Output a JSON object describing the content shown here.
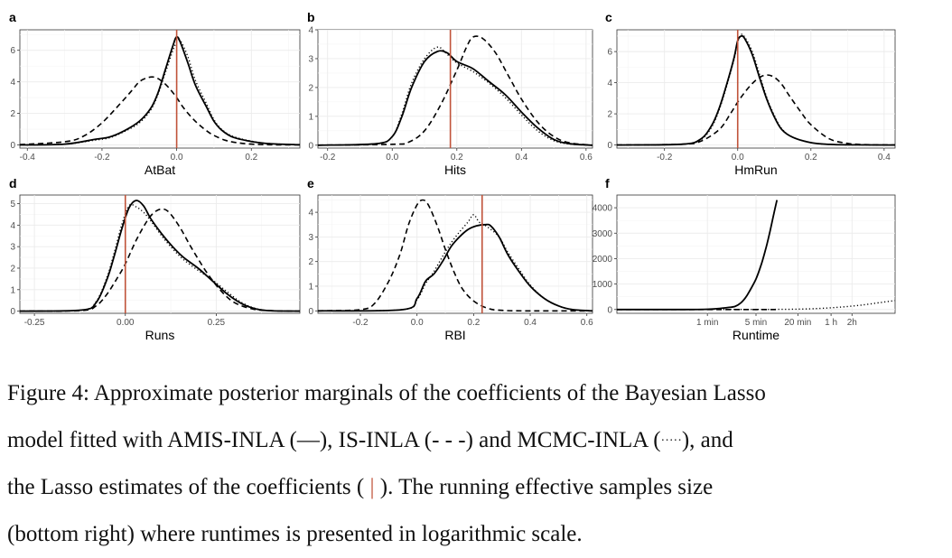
{
  "figure": {
    "caption": {
      "label": "Figure 4:",
      "line1_rest": "Approximate posterior marginals of the coefficients of the Bayesian Lasso",
      "line2_a": "model fitted with AMIS-INLA (",
      "amis_glyph": "—",
      "line2_b": "), IS-INLA (",
      "is_glyph": "- - -",
      "line2_c": ") and MCMC-INLA (",
      "mcmc_glyph": "·····",
      "line2_d": "), and",
      "line3_a": "the Lasso estimates of the coefficients (",
      "lasso_glyph": "|",
      "line3_b": ").  The running effective samples size",
      "line4": "(bottom right) where runtimes is presented in logarithmic scale."
    }
  },
  "chart_data": [
    {
      "panel": "a",
      "type": "line",
      "xlabel": "AtBat",
      "xlim": [
        -0.42,
        0.33
      ],
      "ylim": [
        -0.2,
        7.3
      ],
      "xticks": [
        -0.4,
        -0.2,
        0.0,
        0.2
      ],
      "xtick_labels": [
        "-0.4",
        "-0.2",
        "0.0",
        "0.2"
      ],
      "yticks": [
        0,
        2,
        4,
        6
      ],
      "ytick_labels": [
        "0",
        "2",
        "4",
        "6"
      ],
      "lasso_estimate": 0.0,
      "series": [
        {
          "style": "solid",
          "x": [
            -0.42,
            -0.3,
            -0.22,
            -0.18,
            -0.14,
            -0.1,
            -0.07,
            -0.05,
            -0.03,
            -0.01,
            0.0,
            0.01,
            0.03,
            0.05,
            0.08,
            0.1,
            0.12,
            0.15,
            0.2,
            0.25,
            0.33
          ],
          "y": [
            0,
            0.05,
            0.35,
            0.5,
            0.9,
            1.5,
            2.3,
            3.3,
            4.8,
            6.3,
            6.85,
            6.5,
            5.2,
            3.8,
            2.4,
            1.5,
            0.95,
            0.5,
            0.22,
            0.08,
            0.01
          ]
        },
        {
          "style": "dashed",
          "x": [
            -0.42,
            -0.3,
            -0.25,
            -0.2,
            -0.15,
            -0.12,
            -0.1,
            -0.08,
            -0.06,
            -0.04,
            -0.02,
            0.0,
            0.02,
            0.05,
            0.08,
            0.1,
            0.13,
            0.16,
            0.2,
            0.25,
            0.33
          ],
          "y": [
            0.02,
            0.2,
            0.55,
            1.4,
            2.65,
            3.45,
            4.0,
            4.25,
            4.3,
            4.05,
            3.6,
            3.0,
            2.3,
            1.5,
            0.9,
            0.6,
            0.3,
            0.15,
            0.05,
            0.01,
            0
          ]
        },
        {
          "style": "dotted",
          "x": [
            -0.42,
            -0.3,
            -0.22,
            -0.18,
            -0.14,
            -0.1,
            -0.07,
            -0.05,
            -0.03,
            -0.01,
            0.0,
            0.01,
            0.03,
            0.05,
            0.08,
            0.1,
            0.12,
            0.15,
            0.2,
            0.25,
            0.33
          ],
          "y": [
            0,
            0.05,
            0.3,
            0.45,
            0.85,
            1.4,
            2.2,
            3.2,
            4.6,
            6.0,
            6.5,
            6.6,
            5.6,
            4.1,
            2.6,
            1.6,
            1.0,
            0.55,
            0.24,
            0.08,
            0.01
          ]
        }
      ]
    },
    {
      "panel": "b",
      "type": "line",
      "xlabel": "Hits",
      "xlim": [
        -0.23,
        0.62
      ],
      "ylim": [
        -0.1,
        4.0
      ],
      "xticks": [
        -0.2,
        0.0,
        0.2,
        0.4,
        0.6
      ],
      "xtick_labels": [
        "-0.2",
        "0.0",
        "0.2",
        "0.4",
        "0.6"
      ],
      "yticks": [
        0,
        1,
        2,
        3,
        4
      ],
      "ytick_labels": [
        "0",
        "1",
        "2",
        "3",
        "4"
      ],
      "lasso_estimate": 0.18,
      "series": [
        {
          "style": "solid",
          "x": [
            -0.23,
            -0.05,
            0.0,
            0.03,
            0.06,
            0.1,
            0.14,
            0.17,
            0.2,
            0.25,
            0.3,
            0.35,
            0.4,
            0.45,
            0.5,
            0.55,
            0.62
          ],
          "y": [
            0,
            0.05,
            0.3,
            1.0,
            2.0,
            2.9,
            3.25,
            3.2,
            2.9,
            2.65,
            2.2,
            1.75,
            1.15,
            0.6,
            0.2,
            0.05,
            0
          ]
        },
        {
          "style": "dashed",
          "x": [
            -0.23,
            0.0,
            0.05,
            0.1,
            0.15,
            0.2,
            0.23,
            0.25,
            0.28,
            0.32,
            0.36,
            0.4,
            0.45,
            0.5,
            0.55,
            0.62
          ],
          "y": [
            0,
            0.03,
            0.1,
            0.5,
            1.4,
            2.6,
            3.4,
            3.75,
            3.7,
            3.2,
            2.4,
            1.6,
            0.8,
            0.3,
            0.08,
            0
          ]
        },
        {
          "style": "dotted",
          "x": [
            -0.23,
            -0.05,
            0.0,
            0.03,
            0.06,
            0.1,
            0.14,
            0.17,
            0.2,
            0.25,
            0.3,
            0.35,
            0.4,
            0.45,
            0.5,
            0.55,
            0.62
          ],
          "y": [
            0,
            0.05,
            0.3,
            1.1,
            2.15,
            3.0,
            3.4,
            3.15,
            2.85,
            2.55,
            2.15,
            1.65,
            1.05,
            0.5,
            0.16,
            0.04,
            0
          ]
        }
      ]
    },
    {
      "panel": "c",
      "type": "line",
      "xlabel": "HmRun",
      "xlim": [
        -0.33,
        0.43
      ],
      "ylim": [
        -0.2,
        7.4
      ],
      "xticks": [
        -0.2,
        0.0,
        0.2,
        0.4
      ],
      "xtick_labels": [
        "-0.2",
        "0.0",
        "0.2",
        "0.4"
      ],
      "yticks": [
        0,
        2,
        4,
        6
      ],
      "ytick_labels": [
        "0",
        "2",
        "4",
        "6"
      ],
      "lasso_estimate": 0.0,
      "series": [
        {
          "style": "solid",
          "x": [
            -0.33,
            -0.15,
            -0.1,
            -0.07,
            -0.05,
            -0.03,
            -0.01,
            0.0,
            0.01,
            0.02,
            0.04,
            0.06,
            0.08,
            0.1,
            0.12,
            0.15,
            0.2,
            0.25,
            0.3,
            0.43
          ],
          "y": [
            0,
            0.05,
            0.4,
            1.3,
            2.4,
            3.9,
            5.6,
            6.7,
            7.0,
            6.8,
            5.8,
            4.3,
            2.9,
            1.8,
            1.0,
            0.5,
            0.15,
            0.04,
            0.01,
            0
          ]
        },
        {
          "style": "dashed",
          "x": [
            -0.33,
            -0.15,
            -0.1,
            -0.05,
            -0.02,
            0.0,
            0.02,
            0.04,
            0.06,
            0.08,
            0.1,
            0.12,
            0.14,
            0.17,
            0.2,
            0.25,
            0.3,
            0.35,
            0.43
          ],
          "y": [
            0,
            0.05,
            0.25,
            1.0,
            2.0,
            2.75,
            3.4,
            3.95,
            4.35,
            4.5,
            4.35,
            3.9,
            3.2,
            2.2,
            1.3,
            0.4,
            0.1,
            0.02,
            0
          ]
        },
        {
          "style": "dotted",
          "x": [
            -0.33,
            -0.15,
            -0.1,
            -0.07,
            -0.05,
            -0.03,
            -0.01,
            0.0,
            0.01,
            0.02,
            0.04,
            0.06,
            0.08,
            0.1,
            0.12,
            0.15,
            0.2,
            0.25,
            0.3,
            0.43
          ],
          "y": [
            0,
            0.05,
            0.35,
            1.2,
            2.3,
            3.8,
            5.5,
            6.6,
            7.1,
            6.9,
            6.0,
            4.5,
            3.0,
            1.9,
            1.05,
            0.5,
            0.15,
            0.04,
            0.01,
            0
          ]
        }
      ]
    },
    {
      "panel": "d",
      "type": "line",
      "xlabel": "Runs",
      "xlim": [
        -0.29,
        0.48
      ],
      "ylim": [
        -0.1,
        5.4
      ],
      "xticks": [
        -0.25,
        0.0,
        0.25
      ],
      "xtick_labels": [
        "-0.25",
        "0.00",
        "0.25"
      ],
      "yticks": [
        0,
        1,
        2,
        3,
        4,
        5
      ],
      "ytick_labels": [
        "0",
        "1",
        "2",
        "3",
        "4",
        "5"
      ],
      "lasso_estimate": 0.0,
      "series": [
        {
          "style": "solid",
          "x": [
            -0.29,
            -0.12,
            -0.08,
            -0.05,
            -0.03,
            -0.01,
            0.01,
            0.03,
            0.05,
            0.07,
            0.1,
            0.13,
            0.16,
            0.2,
            0.24,
            0.28,
            0.32,
            0.36,
            0.4,
            0.48
          ],
          "y": [
            0,
            0.05,
            0.4,
            1.5,
            2.6,
            3.8,
            4.8,
            5.15,
            4.9,
            4.3,
            3.6,
            3.0,
            2.5,
            2.0,
            1.4,
            0.8,
            0.35,
            0.1,
            0.02,
            0
          ]
        },
        {
          "style": "dashed",
          "x": [
            -0.29,
            -0.12,
            -0.08,
            -0.05,
            -0.02,
            0.0,
            0.03,
            0.06,
            0.08,
            0.1,
            0.12,
            0.15,
            0.18,
            0.22,
            0.26,
            0.3,
            0.35,
            0.4,
            0.48
          ],
          "y": [
            0,
            0.03,
            0.25,
            0.8,
            1.6,
            2.2,
            3.3,
            4.2,
            4.6,
            4.75,
            4.6,
            3.9,
            3.0,
            1.9,
            1.0,
            0.4,
            0.1,
            0.02,
            0
          ]
        },
        {
          "style": "dotted",
          "x": [
            -0.29,
            -0.12,
            -0.08,
            -0.05,
            -0.03,
            -0.01,
            0.01,
            0.03,
            0.05,
            0.07,
            0.1,
            0.13,
            0.16,
            0.2,
            0.24,
            0.28,
            0.32,
            0.36,
            0.4,
            0.48
          ],
          "y": [
            0,
            0.05,
            0.45,
            1.6,
            2.75,
            4.0,
            4.9,
            4.85,
            4.6,
            4.2,
            3.5,
            2.9,
            2.4,
            1.9,
            1.45,
            0.9,
            0.4,
            0.12,
            0.02,
            0
          ]
        }
      ]
    },
    {
      "panel": "e",
      "type": "line",
      "xlabel": "RBI",
      "xlim": [
        -0.35,
        0.62
      ],
      "ylim": [
        -0.1,
        4.7
      ],
      "xticks": [
        -0.2,
        0.0,
        0.2,
        0.4,
        0.6
      ],
      "xtick_labels": [
        "-0.2",
        "0.0",
        "0.2",
        "0.4",
        "0.6"
      ],
      "yticks": [
        0,
        1,
        2,
        3,
        4
      ],
      "ytick_labels": [
        "0",
        "1",
        "2",
        "3",
        "4"
      ],
      "lasso_estimate": 0.23,
      "series": [
        {
          "style": "solid",
          "x": [
            -0.35,
            -0.05,
            0.0,
            0.03,
            0.06,
            0.09,
            0.12,
            0.15,
            0.18,
            0.21,
            0.24,
            0.26,
            0.29,
            0.32,
            0.36,
            0.4,
            0.45,
            0.5,
            0.55,
            0.62
          ],
          "y": [
            0,
            0.05,
            0.5,
            1.2,
            1.5,
            2.0,
            2.6,
            3.0,
            3.3,
            3.45,
            3.5,
            3.45,
            3.0,
            2.3,
            1.6,
            1.0,
            0.5,
            0.2,
            0.05,
            0
          ]
        },
        {
          "style": "dashed",
          "x": [
            -0.35,
            -0.2,
            -0.15,
            -0.1,
            -0.06,
            -0.03,
            0.0,
            0.02,
            0.04,
            0.07,
            0.1,
            0.13,
            0.16,
            0.2,
            0.25,
            0.3,
            0.4,
            0.62
          ],
          "y": [
            0,
            0.05,
            0.3,
            1.2,
            2.3,
            3.5,
            4.3,
            4.5,
            4.3,
            3.5,
            2.5,
            1.6,
            0.9,
            0.4,
            0.1,
            0.02,
            0,
            0
          ]
        },
        {
          "style": "dotted",
          "x": [
            -0.35,
            -0.05,
            0.0,
            0.03,
            0.06,
            0.09,
            0.12,
            0.15,
            0.18,
            0.2,
            0.22,
            0.25,
            0.29,
            0.32,
            0.36,
            0.4,
            0.45,
            0.5,
            0.55,
            0.62
          ],
          "y": [
            0,
            0.05,
            0.45,
            1.1,
            1.6,
            2.2,
            2.75,
            3.2,
            3.6,
            3.9,
            3.6,
            3.4,
            3.0,
            2.4,
            1.7,
            1.05,
            0.5,
            0.2,
            0.05,
            0
          ]
        }
      ]
    },
    {
      "panel": "f",
      "type": "line",
      "xlabel": "Runtime",
      "x_scale": "log",
      "xlim": [
        0.05,
        500
      ],
      "ylim": [
        -150,
        4500
      ],
      "xticks": [
        1,
        5,
        20,
        60,
        120
      ],
      "xtick_labels": [
        "1 min",
        "5 min",
        "20 min",
        "1 h",
        "2h"
      ],
      "yticks": [
        0,
        1000,
        2000,
        3000,
        4000
      ],
      "ytick_labels": [
        "0",
        "1000",
        "2000",
        "3000",
        "4000"
      ],
      "series": [
        {
          "style": "solid",
          "x": [
            0.05,
            0.5,
            1,
            1.5,
            2,
            2.5,
            3,
            3.5,
            4,
            5,
            6,
            7,
            8,
            9,
            10
          ],
          "y": [
            0,
            0,
            10,
            40,
            80,
            120,
            250,
            450,
            700,
            1200,
            1800,
            2450,
            3100,
            3750,
            4300
          ]
        },
        {
          "style": "dashed",
          "x": [
            0.05,
            10
          ],
          "y": [
            0,
            0
          ]
        },
        {
          "style": "dotted",
          "x": [
            0.05,
            5,
            10,
            20,
            40,
            80,
            160,
            320,
            500
          ],
          "y": [
            0,
            2,
            5,
            15,
            40,
            90,
            170,
            280,
            350
          ]
        }
      ]
    }
  ]
}
